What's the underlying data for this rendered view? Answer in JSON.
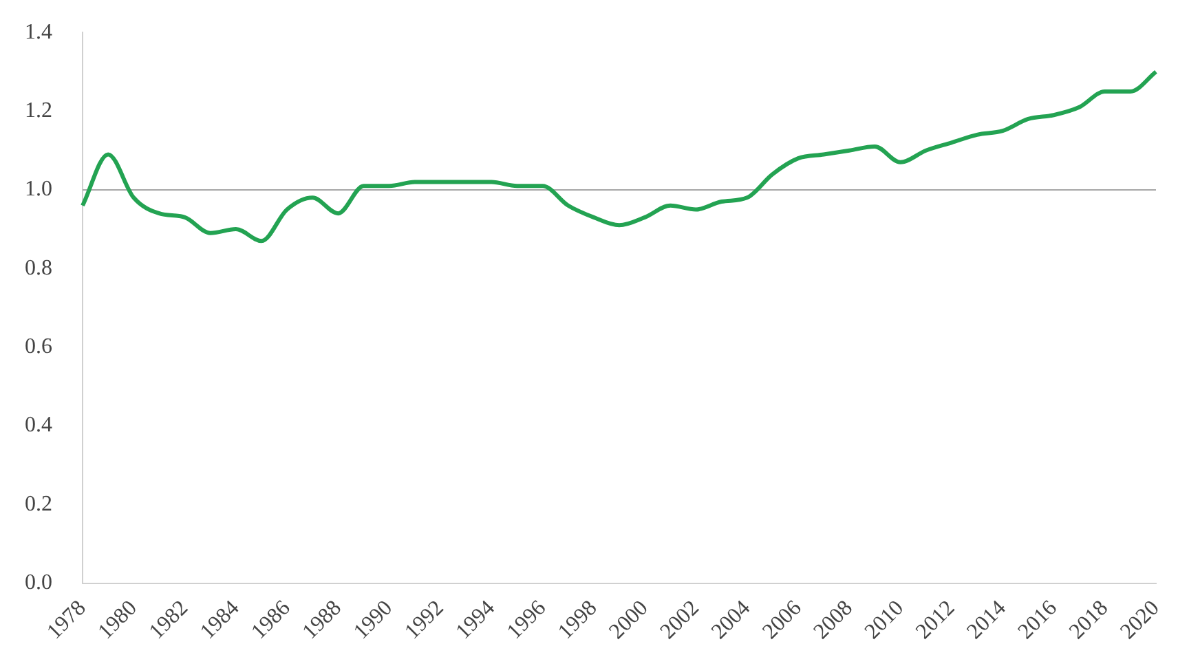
{
  "chart_data": {
    "type": "line",
    "categories": [
      "1978",
      null,
      "1980",
      null,
      "1982",
      null,
      "1984",
      null,
      "1986",
      null,
      "1988",
      null,
      "1990",
      null,
      "1992",
      null,
      "1994",
      null,
      "1996",
      null,
      "1998",
      null,
      "2000",
      null,
      "2002",
      null,
      "2004",
      null,
      "2006",
      null,
      "2008",
      null,
      "2010",
      null,
      "2012",
      null,
      "2014",
      null,
      "2016",
      null,
      "2018",
      null,
      "2020"
    ],
    "series": [
      {
        "color": "#23a352",
        "values": [
          0.96,
          1.09,
          0.98,
          0.94,
          0.93,
          0.89,
          0.9,
          0.87,
          0.95,
          0.98,
          0.94,
          1.01,
          1.01,
          1.02,
          1.02,
          1.02,
          1.02,
          1.01,
          1.01,
          0.96,
          0.93,
          0.91,
          0.93,
          0.96,
          0.95,
          0.97,
          0.98,
          1.04,
          1.08,
          1.09,
          1.1,
          1.11,
          1.07,
          1.1,
          1.12,
          1.14,
          1.15,
          1.18,
          1.19,
          1.21,
          1.25,
          1.25,
          1.3
        ]
      }
    ],
    "ylim": [
      0,
      1.4
    ],
    "yticks": [
      {
        "value": 0,
        "label": "0.0"
      },
      {
        "value": 0.2,
        "label": "0.2"
      },
      {
        "value": 0.4,
        "label": "0.4"
      },
      {
        "value": 0.6,
        "label": "0.6"
      },
      {
        "value": 0.8,
        "label": "0.8"
      },
      {
        "value": 1,
        "label": "1.0"
      },
      {
        "value": 1.2,
        "label": "1.2"
      },
      {
        "value": 1.4,
        "label": "1.4"
      }
    ],
    "ref_lines": [
      {
        "axis": "y",
        "value": 1,
        "color": "#a6a6a6"
      }
    ],
    "grid": false,
    "legend": false,
    "marker": "none",
    "line_style": "solid"
  }
}
